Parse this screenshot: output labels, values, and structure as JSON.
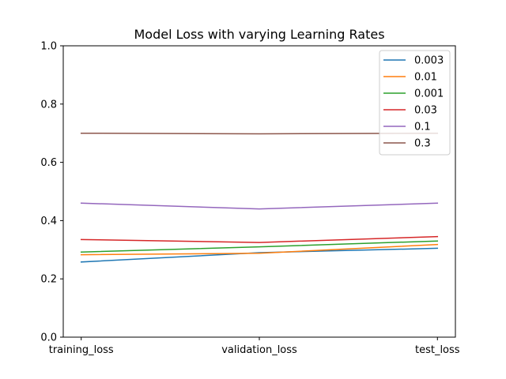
{
  "chart_data": {
    "type": "line",
    "title": "Model Loss with varying Learning Rates",
    "xlabel": "",
    "ylabel": "",
    "categories": [
      "training_loss",
      "validation_loss",
      "test_loss"
    ],
    "ylim": [
      0.0,
      1.0
    ],
    "yticks": [
      "0.0",
      "0.2",
      "0.4",
      "0.6",
      "0.8",
      "1.0"
    ],
    "grid": false,
    "legend_position": "top-right",
    "series": [
      {
        "name": "0.003",
        "color": "#1f77b4",
        "values": [
          0.258,
          0.29,
          0.305
        ]
      },
      {
        "name": "0.01",
        "color": "#ff7f0e",
        "values": [
          0.283,
          0.288,
          0.318
        ]
      },
      {
        "name": "0.001",
        "color": "#2ca02c",
        "values": [
          0.292,
          0.31,
          0.33
        ]
      },
      {
        "name": "0.03",
        "color": "#d62728",
        "values": [
          0.335,
          0.325,
          0.345
        ]
      },
      {
        "name": "0.1",
        "color": "#9467bd",
        "values": [
          0.46,
          0.44,
          0.46
        ]
      },
      {
        "name": "0.3",
        "color": "#8c564b",
        "values": [
          0.7,
          0.698,
          0.7
        ]
      }
    ]
  }
}
